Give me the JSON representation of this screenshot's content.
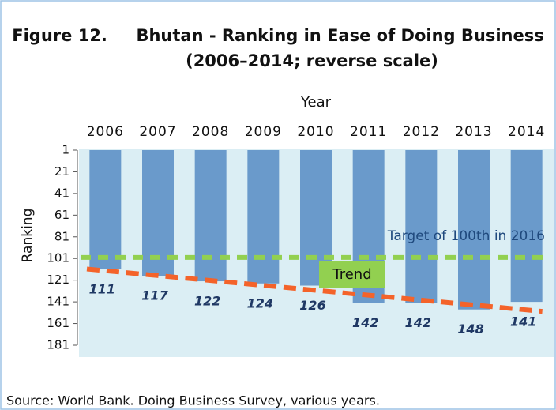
{
  "chart_data": {
    "type": "bar",
    "title": "Figure 12.     Bhutan - Ranking in Ease of Doing Business",
    "subtitle": "(2006–2014; reverse scale)",
    "x_label": "Year",
    "y_label": "Ranking",
    "categories": [
      "2006",
      "2007",
      "2008",
      "2009",
      "2010",
      "2011",
      "2012",
      "2013",
      "2014"
    ],
    "values": [
      111,
      117,
      122,
      124,
      126,
      142,
      142,
      148,
      141
    ],
    "color": "#6a9acb",
    "ylim": [
      1,
      181
    ],
    "yticks": [
      1,
      21,
      41,
      61,
      81,
      101,
      121,
      141,
      161,
      181
    ],
    "reverse": true,
    "target": {
      "value": 100,
      "label": "Target of 100th in 2016",
      "color": "#92d050"
    },
    "trend": {
      "label": "Trend",
      "color": "#f4632a"
    },
    "source": "Source: World Bank. Doing Business Survey, various years."
  }
}
